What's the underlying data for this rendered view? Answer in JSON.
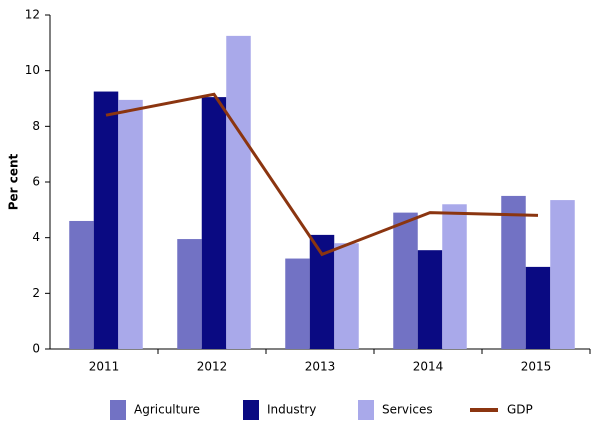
{
  "chart_data": {
    "type": "bar_line",
    "y_label": "Per cent",
    "categories": [
      "2011",
      "2012",
      "2013",
      "2014",
      "2015"
    ],
    "series": [
      {
        "name": "Agriculture",
        "type": "bar",
        "color": "#7272c4",
        "values": [
          4.6,
          3.95,
          3.25,
          4.9,
          5.5
        ]
      },
      {
        "name": "Industry",
        "type": "bar",
        "color": "#0a0a82",
        "values": [
          9.25,
          9.05,
          4.1,
          3.55,
          2.95
        ]
      },
      {
        "name": "Services",
        "type": "bar",
        "color": "#a9a9ea",
        "values": [
          8.95,
          11.25,
          3.8,
          5.2,
          5.35
        ]
      },
      {
        "name": "GDP",
        "type": "line",
        "color": "#8b3510",
        "values": [
          8.4,
          9.15,
          3.4,
          4.9,
          4.8
        ]
      }
    ],
    "ylim": [
      0,
      12
    ],
    "yticks": [
      0,
      2,
      4,
      6,
      8,
      10,
      12
    ],
    "grid": false,
    "legend": "bottom"
  }
}
